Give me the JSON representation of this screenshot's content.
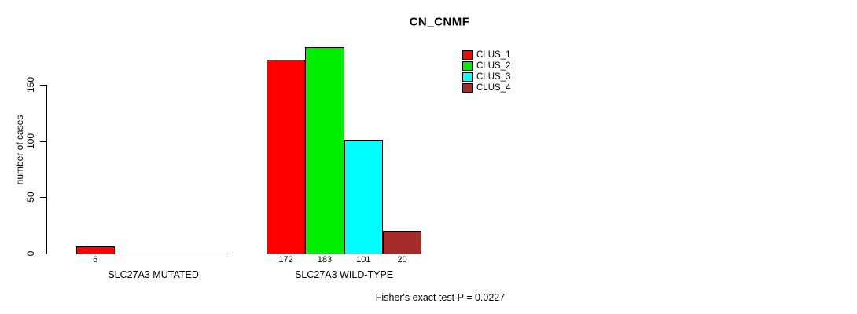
{
  "chart_data": {
    "type": "bar",
    "title": "CN_CNMF",
    "ylabel": "number of cases",
    "xlabel": "",
    "yticks": [
      0,
      50,
      100,
      150
    ],
    "ylim": [
      0,
      150
    ],
    "grid": false,
    "legend_position": "inside-top-right",
    "categories": [
      "SLC27A3 MUTATED",
      "SLC27A3 WILD-TYPE"
    ],
    "series": [
      {
        "name": "CLUS_1",
        "color": "#ff0000",
        "values": [
          6,
          172
        ]
      },
      {
        "name": "CLUS_2",
        "color": "#00ee00",
        "values": [
          0,
          183
        ]
      },
      {
        "name": "CLUS_3",
        "color": "#00ffff",
        "values": [
          0,
          101
        ]
      },
      {
        "name": "CLUS_4",
        "color": "#a52a2a",
        "values": [
          0,
          20
        ]
      }
    ],
    "bar_value_labels_shown": [
      "6",
      "172",
      "183",
      "101",
      "20"
    ],
    "annotation": "Fisher's exact test P = 0.0227"
  }
}
